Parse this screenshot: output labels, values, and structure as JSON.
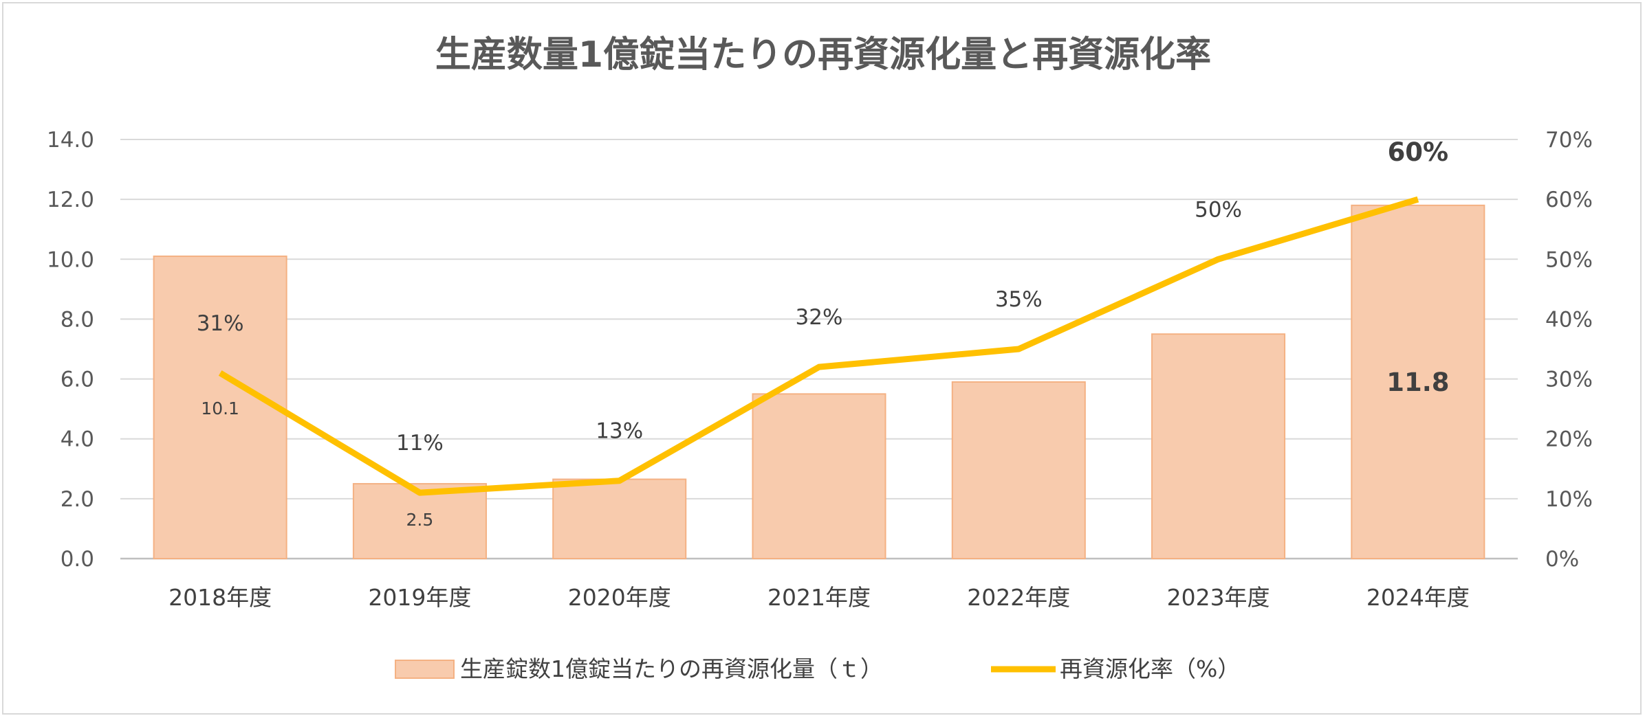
{
  "chart_data": {
    "type": "bar",
    "title": "生産数量1億錠当たりの再資源化量と再資源化率",
    "categories": [
      "2018年度",
      "2019年度",
      "2020年度",
      "2021年度",
      "2022年度",
      "2023年度",
      "2024年度"
    ],
    "series": [
      {
        "name": "生産錠数1億錠当たりの再資源化量（ｔ）",
        "type": "bar",
        "axis": "left",
        "color": "#f8cbad",
        "values": [
          10.1,
          2.5,
          2.65,
          5.5,
          5.9,
          7.5,
          11.8
        ],
        "labels": [
          "10.1",
          "2.5",
          "",
          "",
          "",
          "",
          "11.8"
        ],
        "label_bold": [
          false,
          false,
          false,
          false,
          false,
          false,
          true
        ]
      },
      {
        "name": "再資源化率（%）",
        "type": "line",
        "axis": "right",
        "color": "#ffc000",
        "values": [
          31,
          11,
          13,
          32,
          35,
          50,
          60
        ],
        "labels": [
          "31%",
          "11%",
          "13%",
          "32%",
          "35%",
          "50%",
          "60%"
        ],
        "label_bold": [
          false,
          false,
          false,
          false,
          false,
          false,
          true
        ]
      }
    ],
    "y_left": {
      "ylim": [
        0,
        14
      ],
      "ticks": [
        "0.0",
        "2.0",
        "4.0",
        "6.0",
        "8.0",
        "10.0",
        "12.0",
        "14.0"
      ]
    },
    "y_right": {
      "ylim": [
        0,
        70
      ],
      "ticks": [
        "0%",
        "10%",
        "20%",
        "30%",
        "40%",
        "50%",
        "60%",
        "70%"
      ]
    },
    "grid": true,
    "legend_position": "bottom"
  }
}
